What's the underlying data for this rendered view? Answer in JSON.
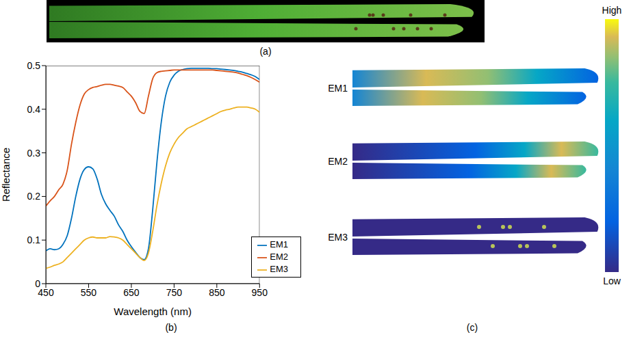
{
  "chart_data": {
    "type": "line",
    "x_label": "Wavelength (nm)",
    "y_label": "Reflectance",
    "x": [
      450,
      460,
      470,
      480,
      490,
      500,
      510,
      520,
      530,
      540,
      550,
      560,
      570,
      580,
      590,
      600,
      610,
      620,
      630,
      640,
      650,
      660,
      670,
      680,
      690,
      700,
      710,
      720,
      730,
      740,
      750,
      760,
      770,
      780,
      790,
      800,
      810,
      820,
      830,
      840,
      850,
      860,
      870,
      880,
      890,
      900,
      910,
      920,
      930,
      940,
      950
    ],
    "xlim": [
      450,
      950
    ],
    "xticks": [
      450,
      550,
      650,
      750,
      850,
      950
    ],
    "ylim": [
      0,
      0.5
    ],
    "yticks": [
      0,
      0.1,
      0.2,
      0.3,
      0.4,
      0.5
    ],
    "grid": false,
    "legend": "lower right",
    "series": [
      {
        "name": "EM1",
        "color": "#0072BD",
        "values": [
          0.075,
          0.08,
          0.078,
          0.08,
          0.09,
          0.11,
          0.15,
          0.2,
          0.24,
          0.262,
          0.268,
          0.263,
          0.24,
          0.205,
          0.183,
          0.168,
          0.155,
          0.135,
          0.12,
          0.1,
          0.085,
          0.072,
          0.06,
          0.055,
          0.08,
          0.17,
          0.28,
          0.37,
          0.43,
          0.462,
          0.478,
          0.487,
          0.491,
          0.493,
          0.494,
          0.494,
          0.494,
          0.494,
          0.494,
          0.493,
          0.493,
          0.492,
          0.491,
          0.49,
          0.489,
          0.487,
          0.485,
          0.482,
          0.479,
          0.475,
          0.468
        ]
      },
      {
        "name": "EM2",
        "color": "#D95319",
        "values": [
          0.178,
          0.19,
          0.2,
          0.215,
          0.228,
          0.26,
          0.32,
          0.37,
          0.41,
          0.435,
          0.445,
          0.45,
          0.452,
          0.455,
          0.457,
          0.457,
          0.455,
          0.453,
          0.45,
          0.44,
          0.43,
          0.415,
          0.395,
          0.39,
          0.43,
          0.47,
          0.484,
          0.487,
          0.488,
          0.489,
          0.49,
          0.49,
          0.49,
          0.49,
          0.49,
          0.49,
          0.49,
          0.49,
          0.49,
          0.49,
          0.489,
          0.488,
          0.487,
          0.486,
          0.485,
          0.483,
          0.48,
          0.477,
          0.473,
          0.468,
          0.462
        ]
      },
      {
        "name": "EM3",
        "color": "#EDB120",
        "values": [
          0.035,
          0.038,
          0.042,
          0.045,
          0.05,
          0.06,
          0.07,
          0.08,
          0.09,
          0.1,
          0.105,
          0.107,
          0.105,
          0.105,
          0.105,
          0.108,
          0.107,
          0.105,
          0.1,
          0.09,
          0.08,
          0.07,
          0.06,
          0.053,
          0.07,
          0.12,
          0.18,
          0.23,
          0.27,
          0.3,
          0.32,
          0.335,
          0.345,
          0.355,
          0.36,
          0.365,
          0.37,
          0.375,
          0.38,
          0.385,
          0.39,
          0.395,
          0.398,
          0.4,
          0.403,
          0.405,
          0.405,
          0.405,
          0.403,
          0.4,
          0.393
        ]
      }
    ]
  },
  "panels": [
    "(a)",
    "(b)",
    "(c)"
  ],
  "abundance_maps": {
    "rows": [
      "EM1",
      "EM2",
      "EM3"
    ],
    "colorbar": {
      "high": "High",
      "low": "Low"
    }
  }
}
